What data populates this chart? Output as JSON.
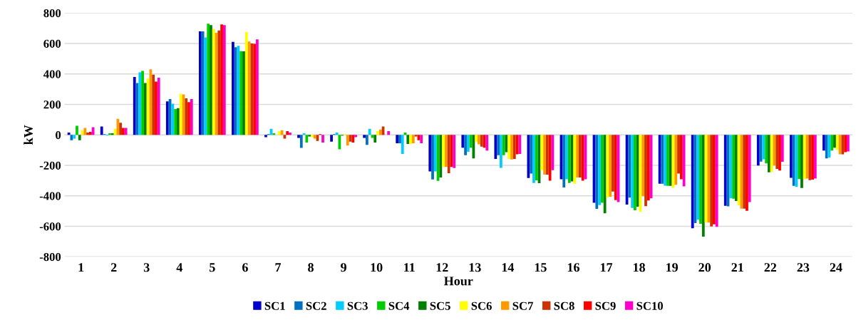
{
  "chart_data": {
    "type": "bar",
    "xlabel": "Hour",
    "ylabel": "kW",
    "categories": [
      "1",
      "2",
      "3",
      "4",
      "5",
      "6",
      "7",
      "8",
      "9",
      "10",
      "11",
      "12",
      "13",
      "14",
      "15",
      "16",
      "17",
      "18",
      "19",
      "20",
      "21",
      "22",
      "23",
      "24"
    ],
    "series": [
      {
        "name": "SC1",
        "color": "#0000cc",
        "values": [
          15,
          55,
          380,
          220,
          680,
          610,
          -15,
          -20,
          -45,
          -20,
          -55,
          -240,
          -84,
          -158,
          -283,
          -291,
          -446,
          -457,
          -321,
          -613,
          -466,
          -201,
          -282,
          -103
        ]
      },
      {
        "name": "SC2",
        "color": "#0070c0",
        "values": [
          -35,
          5,
          340,
          235,
          680,
          575,
          5,
          -85,
          5,
          -65,
          -55,
          -293,
          -133,
          -133,
          -254,
          -345,
          -486,
          -412,
          -321,
          -579,
          -469,
          -175,
          -334,
          -155
        ]
      },
      {
        "name": "SC3",
        "color": "#00ccff",
        "values": [
          -25,
          -5,
          410,
          205,
          640,
          585,
          40,
          10,
          15,
          40,
          -125,
          -240,
          -111,
          -217,
          -316,
          -291,
          -461,
          -480,
          -333,
          -557,
          -416,
          -160,
          -341,
          -149
        ]
      },
      {
        "name": "SC4",
        "color": "#00cc00",
        "values": [
          60,
          10,
          420,
          170,
          730,
          550,
          10,
          -50,
          -95,
          -20,
          15,
          -302,
          -84,
          -133,
          -298,
          -316,
          -446,
          -495,
          -335,
          -584,
          -419,
          -187,
          -290,
          -103
        ]
      },
      {
        "name": "SC5",
        "color": "#008000",
        "values": [
          -35,
          10,
          340,
          175,
          720,
          548,
          0,
          -10,
          -5,
          -50,
          -60,
          -279,
          -155,
          -114,
          -317,
          -305,
          -515,
          -471,
          -335,
          -668,
          -434,
          -246,
          -349,
          -84
        ]
      },
      {
        "name": "SC6",
        "color": "#ffff00",
        "values": [
          30,
          40,
          370,
          270,
          695,
          675,
          25,
          -15,
          -5,
          25,
          -60,
          -210,
          -47,
          -158,
          -232,
          -320,
          -412,
          -505,
          -347,
          -576,
          -462,
          -243,
          -290,
          -99
        ]
      },
      {
        "name": "SC7",
        "color": "#ff9900",
        "values": [
          45,
          105,
          430,
          265,
          670,
          613,
          30,
          -25,
          -70,
          35,
          -55,
          -210,
          -62,
          -161,
          -261,
          -279,
          -406,
          -402,
          -328,
          -576,
          -484,
          -201,
          -287,
          -128
        ]
      },
      {
        "name": "SC8",
        "color": "#cc3300",
        "values": [
          15,
          80,
          395,
          240,
          685,
          600,
          -25,
          -40,
          -45,
          55,
          -10,
          -251,
          -77,
          -158,
          -261,
          -279,
          -372,
          -468,
          -254,
          -601,
          -484,
          -224,
          -297,
          -128
        ]
      },
      {
        "name": "SC9",
        "color": "#ff0000",
        "values": [
          20,
          45,
          350,
          215,
          725,
          598,
          25,
          5,
          -50,
          0,
          -35,
          -210,
          -84,
          -128,
          -301,
          -301,
          -428,
          -431,
          -291,
          -587,
          -498,
          -234,
          -294,
          -113
        ]
      },
      {
        "name": "SC10",
        "color": "#ff00cc",
        "values": [
          50,
          45,
          375,
          235,
          720,
          627,
          15,
          -50,
          -15,
          25,
          -55,
          -218,
          -103,
          -125,
          -232,
          -291,
          -441,
          -417,
          -338,
          -604,
          -441,
          -177,
          -287,
          -109
        ]
      }
    ],
    "ylim": [
      -800,
      800
    ],
    "yticks": [
      -800,
      -600,
      -400,
      -200,
      0,
      200,
      400,
      600,
      800
    ],
    "grid": "y",
    "legend": "bottom"
  }
}
